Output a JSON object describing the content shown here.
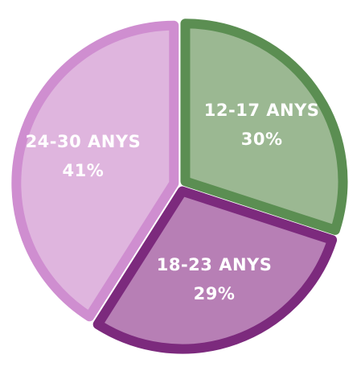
{
  "chart_data": {
    "type": "pie",
    "categories": [
      "12-17 ANYS",
      "18-23 ANYS",
      "24-30 ANYS"
    ],
    "values": [
      30,
      29,
      41
    ],
    "value_labels": [
      "30%",
      "29%",
      "41%"
    ],
    "colors": [
      "#9bb892",
      "#b77fb5",
      "#dfb5de"
    ],
    "stroke_colors": [
      "#5b8e52",
      "#7c2a7d",
      "#cf8ed0"
    ]
  }
}
